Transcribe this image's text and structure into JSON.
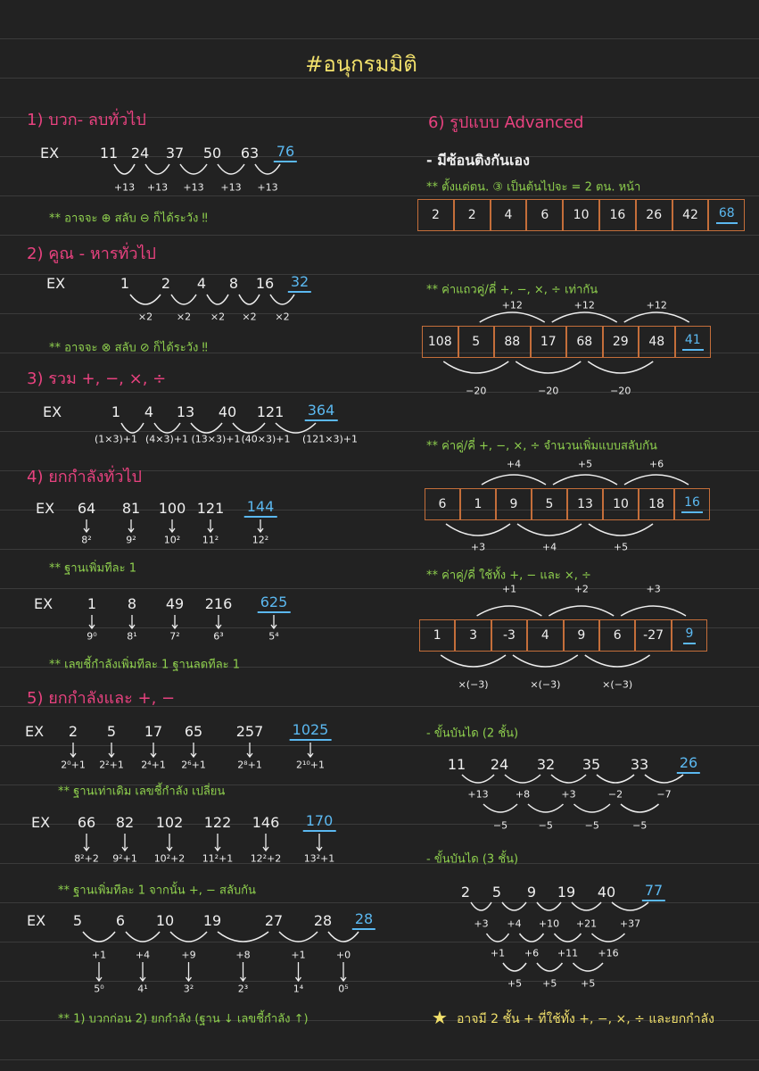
{
  "title": "#อนุกรมมิติ",
  "left": [
    {
      "heading": "1) บวก- ลบทั่วไป",
      "examples": [
        {
          "ex": "EX",
          "terms": [
            "11",
            "24",
            "37",
            "50",
            "63"
          ],
          "answer": "76",
          "steps": [
            "+13",
            "+13",
            "+13",
            "+13",
            "+13"
          ],
          "note": "** อาจจะ ⊕ สลับ ⊖ ก็ได้ระวัง ‼"
        }
      ]
    },
    {
      "heading": "2) คูณ - หารทั่วไป",
      "examples": [
        {
          "ex": "EX",
          "terms": [
            "1",
            "2",
            "4",
            "8",
            "16"
          ],
          "answer": "32",
          "steps": [
            "×2",
            "×2",
            "×2",
            "×2",
            "×2"
          ],
          "note": "** อาจจะ ⊗ สลับ ⊘ ก็ได้ระวัง ‼"
        }
      ]
    },
    {
      "heading": "3) รวม +, −, ×, ÷",
      "examples": [
        {
          "ex": "EX",
          "terms": [
            "1",
            "4",
            "13",
            "40",
            "121"
          ],
          "answer": "364",
          "steps": [
            "(1×3)+1",
            "(4×3)+1",
            "(13×3)+1",
            "(40×3)+1",
            "(121×3)+1"
          ]
        }
      ]
    },
    {
      "heading": "4) ยกกำลังทั่วไป",
      "examples": [
        {
          "ex": "EX",
          "terms": [
            "64",
            "81",
            "100",
            "121"
          ],
          "answer": "144",
          "below": [
            "8²",
            "9²",
            "10²",
            "11²",
            "12²"
          ],
          "note": "** ฐานเพิ่มทีละ 1"
        },
        {
          "ex": "EX",
          "terms": [
            "1",
            "8",
            "49",
            "216"
          ],
          "answer": "625",
          "below": [
            "9⁰",
            "8¹",
            "7²",
            "6³",
            "5⁴"
          ],
          "note": "** เลขชี้กำลังเพิ่มทีละ 1 ฐานลดทีละ 1"
        }
      ]
    },
    {
      "heading": "5) ยกกำลังและ +, −",
      "examples": [
        {
          "ex": "EX",
          "terms": [
            "2",
            "5",
            "17",
            "65",
            "257"
          ],
          "answer": "1025",
          "below": [
            "2⁰+1",
            "2²+1",
            "2⁴+1",
            "2⁶+1",
            "2⁸+1",
            "2¹⁰+1"
          ],
          "note": "** ฐานเท่าเดิม เลขชี้กำลัง เปลี่ยน"
        },
        {
          "ex": "EX",
          "terms": [
            "66",
            "82",
            "102",
            "122",
            "146"
          ],
          "answer": "170",
          "below": [
            "8²+2",
            "9²+1",
            "10²+2",
            "11²+1",
            "12²+2",
            "13²+1"
          ],
          "note": "** ฐานเพิ่มทีละ 1 จากนั้น +, − สลับกัน"
        },
        {
          "ex": "EX",
          "terms": [
            "5",
            "6",
            "10",
            "19",
            "27",
            "28"
          ],
          "answer": "28",
          "steps": [
            "+1",
            "+4",
            "+9",
            "+8",
            "+1",
            "+0"
          ],
          "below": [
            "5⁰",
            "4¹",
            "3²",
            "2³",
            "1⁴",
            "0⁵"
          ],
          "note": "** 1) บวกก่อน   2) ยกกำลัง (ฐาน ↓ เลขชี้กำลัง ↑)"
        }
      ]
    }
  ],
  "right": {
    "heading": "6) รูปแบบ Advanced",
    "subheading": "- มีซ้อนติงกันเอง",
    "patterns": [
      {
        "note": "** ตั้งแต่ตน. ③ เป็นต้นไปจะ = 2 ตน. หน้า",
        "cells": [
          "2",
          "2",
          "4",
          "6",
          "10",
          "16",
          "26",
          "42"
        ],
        "answer": "68"
      },
      {
        "note": "** ค่าแถวคู่/คี่ +, −, ×, ÷ เท่ากัน",
        "top": [
          "+12",
          "+12",
          "+12"
        ],
        "cells": [
          "108",
          "5",
          "88",
          "17",
          "68",
          "29",
          "48"
        ],
        "answer": "41",
        "bottom": [
          "−20",
          "−20",
          "−20"
        ]
      },
      {
        "note": "** ค่าคู่/คี่ +, −, ×, ÷ จำนวนเพิ่มแบบสลับกัน",
        "top": [
          "+4",
          "+5",
          "+6"
        ],
        "cells": [
          "6",
          "1",
          "9",
          "5",
          "13",
          "10",
          "18"
        ],
        "answer": "16",
        "bottom": [
          "+3",
          "+4",
          "+5"
        ]
      },
      {
        "note": "** ค่าคู่/คี่ ใช้ทั้ง +, − และ ×, ÷",
        "top": [
          "+1",
          "+2",
          "+3"
        ],
        "cells": [
          "1",
          "3",
          "-3",
          "4",
          "9",
          "6",
          "-27"
        ],
        "answer": "9",
        "bottom": [
          "×(−3)",
          "×(−3)",
          "×(−3)"
        ]
      }
    ],
    "stairs": [
      {
        "heading": "- ขั้นบันได (2 ชั้น)",
        "terms": [
          "11",
          "24",
          "32",
          "35",
          "33"
        ],
        "answer": "26",
        "levels": [
          [
            "+13",
            "+8",
            "+3",
            "−2",
            "−7"
          ],
          [
            "−5",
            "−5",
            "−5",
            "−5"
          ]
        ]
      },
      {
        "heading": "- ขั้นบันได (3 ชั้น)",
        "terms": [
          "2",
          "5",
          "9",
          "19",
          "40"
        ],
        "answer": "77",
        "levels": [
          [
            "+3",
            "+4",
            "+10",
            "+21",
            "+37"
          ],
          [
            "+1",
            "+6",
            "+11",
            "+16"
          ],
          [
            "+5",
            "+5",
            "+5"
          ]
        ]
      }
    ],
    "summary": "อาจมี 2 ชั้น + ที่ใช้ทั้ง +, −, ×, ÷ และยกกำลัง"
  }
}
